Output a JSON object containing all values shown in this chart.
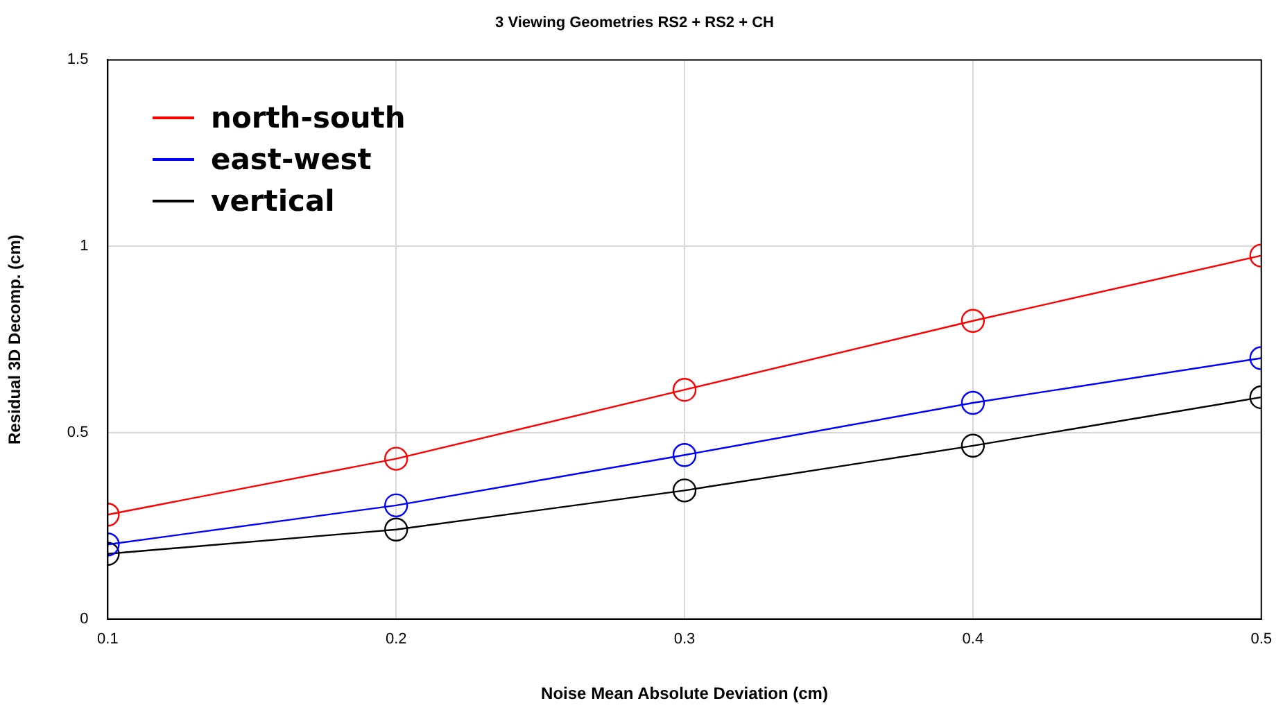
{
  "chart_data": {
    "type": "line",
    "title": "3 Viewing Geometries RS2 + RS2 + CH",
    "xlabel": "Noise Mean Absolute Deviation (cm)",
    "ylabel": "Residual 3D Decomp. (cm)",
    "x": [
      0.1,
      0.2,
      0.3,
      0.4,
      0.5
    ],
    "series": [
      {
        "name": "north-south",
        "color": "#ff0000",
        "values": [
          0.28,
          0.43,
          0.615,
          0.8,
          0.975
        ]
      },
      {
        "name": "east-west",
        "color": "#0000ff",
        "values": [
          0.2,
          0.305,
          0.44,
          0.58,
          0.7
        ]
      },
      {
        "name": "vertical",
        "color": "#000000",
        "values": [
          0.175,
          0.24,
          0.345,
          0.465,
          0.595
        ]
      }
    ],
    "xlim": [
      0.1,
      0.5
    ],
    "xticks": [
      0.1,
      0.2,
      0.3,
      0.4,
      0.5
    ],
    "ylim": [
      0,
      1.5
    ],
    "yticks": [
      0,
      0.5,
      1,
      1.5
    ],
    "grid": true,
    "legend": "top left",
    "marker": "circle",
    "line_style": "solid"
  }
}
